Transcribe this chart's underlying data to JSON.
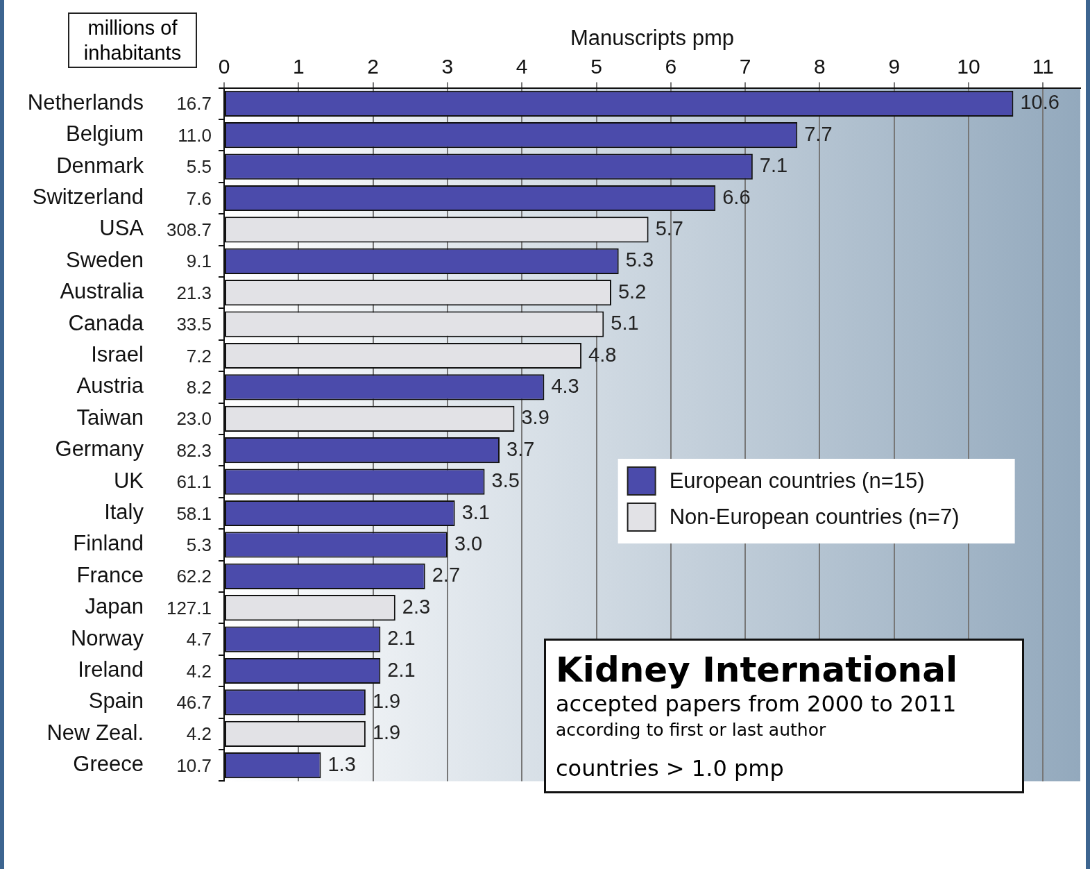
{
  "chart_data": {
    "type": "bar",
    "orientation": "horizontal",
    "stacked": true,
    "title": "Kidney International",
    "subtitle": "accepted papers from 2000 to 2011",
    "xlabel": "Manuscripts pmp",
    "categories": [
      "Netherlands",
      "Belgium",
      "Denmark",
      "Switzerland",
      "USA",
      "Sweden",
      "Australia",
      "Canada",
      "Israel",
      "Austria",
      "Taiwan",
      "Germany",
      "UK",
      "Italy",
      "Finland",
      "France",
      "Japan",
      "Norway",
      "Ireland",
      "Spain",
      "New Zeal.",
      "Greece"
    ],
    "series": [
      {
        "name": "European countries (n=15)",
        "color": "#4b4bab",
        "values": [
          10.6,
          7.7,
          7.1,
          6.6,
          null,
          5.3,
          null,
          null,
          null,
          4.3,
          null,
          3.7,
          3.5,
          3.1,
          3.0,
          2.7,
          null,
          2.1,
          2.1,
          1.9,
          null,
          1.3
        ],
        "value_labels": [
          "10.6",
          "7.7",
          "7.1",
          "6.6",
          null,
          "5.3",
          null,
          null,
          null,
          "4.3",
          null,
          "3.7",
          "3.5",
          "3.1",
          "3.0",
          "2.7",
          null,
          "2.1",
          "2.1",
          "1.9",
          null,
          "1.3"
        ]
      },
      {
        "name": "Non-European countries (n=7)",
        "color": "#e2e2e6",
        "values": [
          null,
          null,
          null,
          null,
          5.7,
          null,
          5.2,
          5.1,
          4.8,
          null,
          3.9,
          null,
          null,
          null,
          null,
          null,
          2.3,
          null,
          null,
          null,
          1.9,
          null
        ],
        "value_labels": [
          null,
          null,
          null,
          null,
          "5.7",
          null,
          "5.2",
          "5.1",
          "4.8",
          null,
          "3.9",
          null,
          null,
          null,
          null,
          null,
          "2.3",
          null,
          null,
          null,
          "1.9",
          null
        ]
      }
    ],
    "xlim": [
      0,
      11.5
    ],
    "xticks": [
      0,
      1,
      2,
      3,
      4,
      5,
      6,
      7,
      8,
      9,
      10,
      11
    ],
    "grid": "x",
    "legend": "right",
    "annotations": [
      "millions of inhabitants",
      "16.7",
      "11.0",
      "5.5",
      "7.6",
      "308.7",
      "9.1",
      "21.3",
      "33.5",
      "7.2",
      "8.2",
      "23.0",
      "82.3",
      "61.1",
      "58.1",
      "5.3",
      "62.2",
      "127.1",
      "4.7",
      "4.2",
      "46.7",
      "4.2",
      "10.7",
      "according to first or last author",
      "countries > 1.0 pmp"
    ]
  }
}
